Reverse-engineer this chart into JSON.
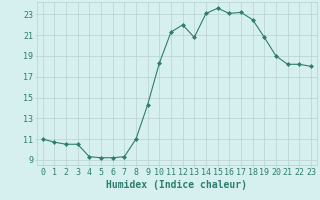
{
  "x": [
    0,
    1,
    2,
    3,
    4,
    5,
    6,
    7,
    8,
    9,
    10,
    11,
    12,
    13,
    14,
    15,
    16,
    17,
    18,
    19,
    20,
    21,
    22,
    23
  ],
  "y": [
    11.0,
    10.7,
    10.5,
    10.5,
    9.3,
    9.2,
    9.2,
    9.3,
    11.0,
    14.3,
    18.3,
    21.3,
    22.0,
    20.8,
    23.1,
    23.6,
    23.1,
    23.2,
    22.5,
    20.8,
    19.0,
    18.2,
    18.2,
    18.0
  ],
  "line_color": "#2e7d6e",
  "marker": "D",
  "marker_size": 2.0,
  "bg_color": "#d6f0f0",
  "grid_color": "#b8d0d0",
  "xlabel": "Humidex (Indice chaleur)",
  "xlabel_fontsize": 7,
  "tick_fontsize": 6,
  "xlim": [
    -0.5,
    23.5
  ],
  "ylim": [
    8.5,
    24.2
  ],
  "yticks": [
    9,
    11,
    13,
    15,
    17,
    19,
    21,
    23
  ],
  "xticks": [
    0,
    1,
    2,
    3,
    4,
    5,
    6,
    7,
    8,
    9,
    10,
    11,
    12,
    13,
    14,
    15,
    16,
    17,
    18,
    19,
    20,
    21,
    22,
    23
  ]
}
